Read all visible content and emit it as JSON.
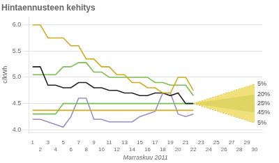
{
  "chart_data": {
    "type": "line",
    "title": "Hintaennusteen kehitys",
    "xlabel": "Marraskuu 2011",
    "ylabel": "c/kWh",
    "xlim": [
      0.5,
      31
    ],
    "ylim": [
      3.95,
      6.15
    ],
    "xticks": [
      1,
      2,
      3,
      4,
      5,
      6,
      7,
      8,
      9,
      10,
      11,
      12,
      13,
      14,
      15,
      16,
      17,
      18,
      19,
      20,
      21,
      22,
      23,
      24,
      25,
      26,
      27,
      28,
      29,
      30
    ],
    "yticks": [
      {
        "value": 4.0,
        "label": "4.0"
      },
      4.5,
      {
        "value": 5.0,
        "label": "5.0"
      },
      5.5,
      {
        "value": 6.0,
        "label": "6.0"
      }
    ],
    "grid": "y",
    "bands": [
      {
        "color": "#F0DC6A",
        "x": [
          22,
          30
        ],
        "lower": [
          4.5,
          4.13
        ],
        "upper": [
          4.5,
          4.87
        ]
      },
      {
        "color": "#5A9E30",
        "x": [
          22,
          30
        ],
        "lower": [
          4.5,
          4.33
        ],
        "upper": [
          4.5,
          4.67
        ]
      }
    ],
    "series": [
      {
        "color": "#C8B840",
        "line_style": "dotted",
        "x": [
          22,
          30
        ],
        "values": [
          4.5,
          4.87
        ]
      },
      {
        "color": "#C8A030",
        "line_style": "dotted",
        "x": [
          22,
          30
        ],
        "values": [
          4.5,
          4.13
        ]
      },
      {
        "color": "#7DBD4F",
        "line_style": "dotted",
        "x": [
          22,
          30
        ],
        "values": [
          4.5,
          4.67
        ]
      },
      {
        "color": "#7DBD4F",
        "line_style": "dotted",
        "x": [
          22,
          30
        ],
        "values": [
          4.5,
          4.33
        ]
      },
      {
        "color": "#444444",
        "line_style": "dotted",
        "x": [
          22,
          30
        ],
        "values": [
          4.5,
          4.5
        ]
      },
      {
        "color": "#D4A820",
        "line_style": "solid",
        "x": [
          1,
          2,
          3,
          4,
          5,
          6,
          7,
          8,
          9,
          10,
          11,
          12,
          13,
          14,
          15,
          16,
          17,
          18,
          19,
          20,
          21,
          22
        ],
        "values": [
          6.0,
          6.0,
          5.75,
          5.75,
          5.75,
          5.6,
          5.6,
          5.35,
          5.35,
          5.2,
          5.2,
          5.05,
          5.05,
          4.9,
          4.9,
          4.8,
          4.8,
          4.7,
          4.7,
          5.0,
          5.0,
          4.75
        ]
      },
      {
        "color": "#222222",
        "line_style": "solid",
        "x": [
          1,
          2,
          3,
          4,
          5,
          6,
          7,
          8,
          9,
          10,
          11,
          12,
          13,
          14,
          15,
          16,
          17,
          18,
          19,
          20,
          21,
          22
        ],
        "values": [
          5.2,
          5.2,
          4.85,
          4.85,
          4.8,
          4.8,
          4.9,
          4.9,
          4.8,
          4.8,
          4.75,
          4.75,
          4.7,
          4.7,
          4.65,
          4.65,
          4.7,
          4.7,
          4.65,
          4.7,
          4.5,
          4.5
        ]
      },
      {
        "color": "#7DBD4F",
        "line_style": "solid",
        "x": [
          1,
          2,
          3,
          4,
          5,
          6,
          7,
          8,
          9,
          10,
          11,
          12,
          13,
          14,
          15,
          16,
          17,
          18,
          19,
          20,
          21,
          22
        ],
        "values": [
          5.05,
          5.05,
          5.05,
          5.05,
          5.2,
          5.2,
          5.28,
          5.28,
          5.1,
          5.1,
          5.0,
          5.0,
          5.0,
          5.0,
          5.0,
          5.0,
          4.9,
          4.9,
          4.85,
          4.85,
          4.85,
          4.65
        ]
      },
      {
        "color": "#7DBD4F",
        "line_style": "solid",
        "x": [
          1,
          2,
          3,
          4,
          5,
          6,
          7,
          8,
          9,
          10,
          11,
          12,
          13,
          14,
          15,
          16,
          17,
          18,
          19,
          20,
          21,
          22
        ],
        "values": [
          4.3,
          4.3,
          4.3,
          4.3,
          4.5,
          4.5,
          4.5,
          4.5,
          4.5,
          4.5,
          4.5,
          4.5,
          4.5,
          4.5,
          4.5,
          4.5,
          4.5,
          4.5,
          4.5,
          4.5,
          4.5,
          4.5
        ]
      },
      {
        "color": "#D4A820",
        "line_style": "solid",
        "x": [
          1,
          2,
          3,
          4,
          5,
          6,
          7,
          8,
          9,
          10,
          11,
          12,
          13,
          14,
          15,
          16,
          17,
          18,
          19,
          20,
          21,
          22
        ],
        "values": [
          4.37,
          4.37,
          4.37,
          4.37,
          4.37,
          4.37,
          4.37,
          4.37,
          4.37,
          4.37,
          4.37,
          4.37,
          4.37,
          4.37,
          4.37,
          4.37,
          4.37,
          4.37,
          4.37,
          4.37,
          4.37,
          4.37
        ]
      },
      {
        "color": "#9B8DC8",
        "line_style": "solid",
        "x": [
          1,
          2,
          3,
          4,
          5,
          6,
          7,
          8,
          9,
          10,
          11,
          12,
          13,
          14,
          15,
          16,
          17,
          18,
          19,
          20,
          21,
          22
        ],
        "values": [
          4.2,
          4.2,
          4.15,
          4.1,
          4.05,
          4.25,
          4.6,
          4.6,
          4.2,
          4.2,
          4.15,
          4.15,
          4.15,
          4.15,
          4.25,
          4.3,
          4.35,
          4.7,
          4.7,
          4.3,
          4.25,
          4.3
        ]
      }
    ],
    "annotations": [
      {
        "text": "5%",
        "x": 30,
        "y": 4.87
      },
      {
        "text": "20%",
        "x": 30,
        "y": 4.67
      },
      {
        "text": "25%",
        "x": 30,
        "y": 4.5
      },
      {
        "text": "45%",
        "x": 30,
        "y": 4.33
      },
      {
        "text": "5%",
        "x": 30,
        "y": 4.13
      }
    ]
  }
}
